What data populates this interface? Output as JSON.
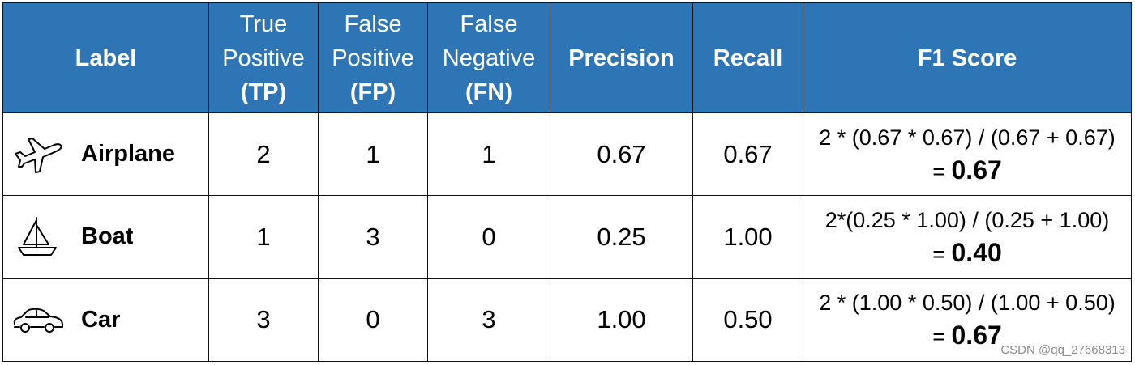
{
  "header": {
    "label": "Label",
    "tp": [
      "True",
      "Positive",
      "(TP)"
    ],
    "fp": [
      "False",
      "Positive",
      "(FP)"
    ],
    "fn": [
      "False",
      "Negative",
      "(FN)"
    ],
    "precision": "Precision",
    "recall": "Recall",
    "f1": "F1 Score"
  },
  "rows": [
    {
      "icon": "airplane-icon",
      "label": "Airplane",
      "tp": "2",
      "fp": "1",
      "fn": "1",
      "precision": "0.67",
      "recall": "0.67",
      "f1_formula": "2 * (0.67 * 0.67) / (0.67 + 0.67)",
      "f1_eq": "= ",
      "f1_value": "0.67"
    },
    {
      "icon": "sailboat-icon",
      "label": "Boat",
      "tp": "1",
      "fp": "3",
      "fn": "0",
      "precision": "0.25",
      "recall": "1.00",
      "f1_formula": "2*(0.25 * 1.00) / (0.25 + 1.00)",
      "f1_eq": "= ",
      "f1_value": "0.40"
    },
    {
      "icon": "car-icon",
      "label": "Car",
      "tp": "3",
      "fp": "0",
      "fn": "3",
      "precision": "1.00",
      "recall": "0.50",
      "f1_formula": "2 * (1.00 * 0.50) / (1.00 + 0.50)",
      "f1_eq": "= ",
      "f1_value": "0.67"
    }
  ],
  "colors": {
    "header_bg": "#2e75b6",
    "header_text": "#ffffff",
    "border": "#111111"
  },
  "watermark": "CSDN @qq_27668313"
}
